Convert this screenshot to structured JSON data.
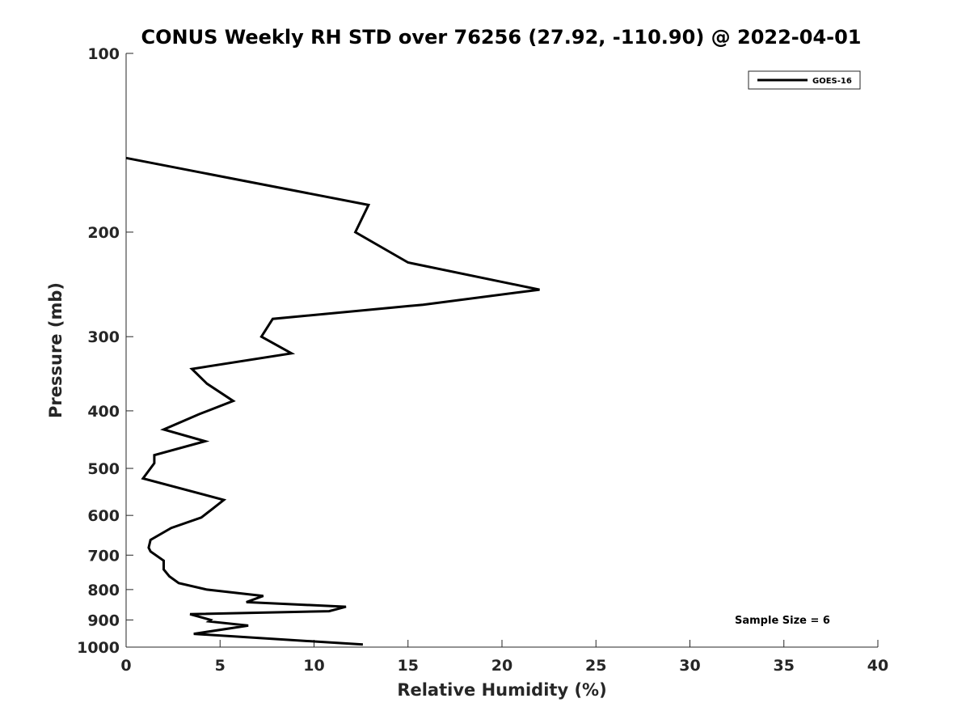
{
  "chart_data": {
    "type": "line",
    "title": "CONUS Weekly RH STD over 76256 (27.92, -110.90) @ 2022-04-01",
    "xlabel": "Relative Humidity (%)",
    "ylabel": "Pressure (mb)",
    "xlim": [
      0,
      40
    ],
    "ylim": [
      100,
      1000
    ],
    "yscale": "log",
    "y_reversed": true,
    "x_ticks": [
      0,
      5,
      10,
      15,
      20,
      25,
      30,
      35,
      40
    ],
    "y_ticks": [
      100,
      200,
      300,
      400,
      500,
      600,
      700,
      800,
      900,
      1000
    ],
    "grid": false,
    "legend_position": "top-right",
    "annotation": "Sample Size = 6",
    "series": [
      {
        "name": "GOES-16",
        "color": "#000000",
        "x": [
          0.0,
          12.9,
          12.2,
          15.0,
          22.0,
          15.8,
          7.8,
          7.2,
          8.8,
          3.5,
          4.3,
          5.7,
          3.9,
          2.0,
          4.2,
          1.5,
          1.5,
          0.9,
          5.2,
          4.6,
          4.0,
          2.4,
          1.3,
          1.2,
          1.3,
          2.0,
          2.0,
          2.3,
          2.8,
          4.3,
          7.3,
          6.4,
          11.7,
          10.8,
          3.4,
          4.5,
          4.4,
          6.5,
          3.6,
          12.6
        ],
        "y": [
          150,
          180,
          200,
          225,
          250,
          265,
          280,
          300,
          320,
          340,
          360,
          385,
          405,
          430,
          450,
          475,
          490,
          520,
          565,
          585,
          605,
          630,
          660,
          680,
          690,
          715,
          740,
          760,
          780,
          800,
          820,
          840,
          855,
          870,
          880,
          900,
          905,
          920,
          950,
          990
        ]
      }
    ]
  }
}
